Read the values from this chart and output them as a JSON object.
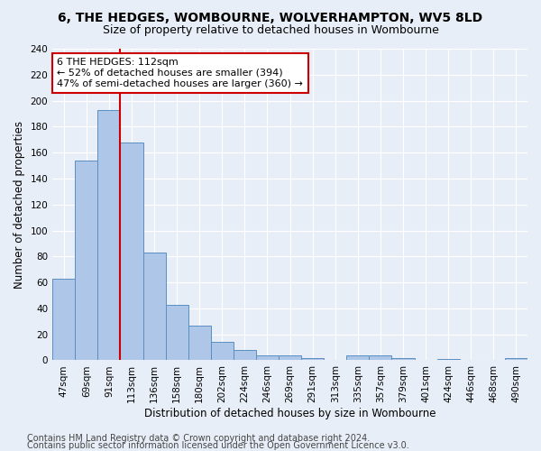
{
  "title1": "6, THE HEDGES, WOMBOURNE, WOLVERHAMPTON, WV5 8LD",
  "title2": "Size of property relative to detached houses in Wombourne",
  "xlabel": "Distribution of detached houses by size in Wombourne",
  "ylabel": "Number of detached properties",
  "categories": [
    "47sqm",
    "69sqm",
    "91sqm",
    "113sqm",
    "136sqm",
    "158sqm",
    "180sqm",
    "202sqm",
    "224sqm",
    "246sqm",
    "269sqm",
    "291sqm",
    "313sqm",
    "335sqm",
    "357sqm",
    "379sqm",
    "401sqm",
    "424sqm",
    "446sqm",
    "468sqm",
    "490sqm"
  ],
  "values": [
    63,
    154,
    193,
    168,
    83,
    43,
    27,
    14,
    8,
    4,
    4,
    2,
    0,
    4,
    4,
    2,
    0,
    1,
    0,
    0,
    2
  ],
  "bar_color": "#aec6e8",
  "bar_edge_color": "#5a8fc2",
  "vline_x_index": 2,
  "vline_color": "#cc0000",
  "annotation_text": "6 THE HEDGES: 112sqm\n← 52% of detached houses are smaller (394)\n47% of semi-detached houses are larger (360) →",
  "annotation_box_color": "#ffffff",
  "annotation_box_edge": "#cc0000",
  "ylim": [
    0,
    240
  ],
  "yticks": [
    0,
    20,
    40,
    60,
    80,
    100,
    120,
    140,
    160,
    180,
    200,
    220,
    240
  ],
  "footer1": "Contains HM Land Registry data © Crown copyright and database right 2024.",
  "footer2": "Contains public sector information licensed under the Open Government Licence v3.0.",
  "bg_color": "#e8eef7",
  "title_fontsize": 10,
  "subtitle_fontsize": 9,
  "axis_label_fontsize": 8.5,
  "tick_fontsize": 7.5,
  "footer_fontsize": 7,
  "annotation_fontsize": 8
}
